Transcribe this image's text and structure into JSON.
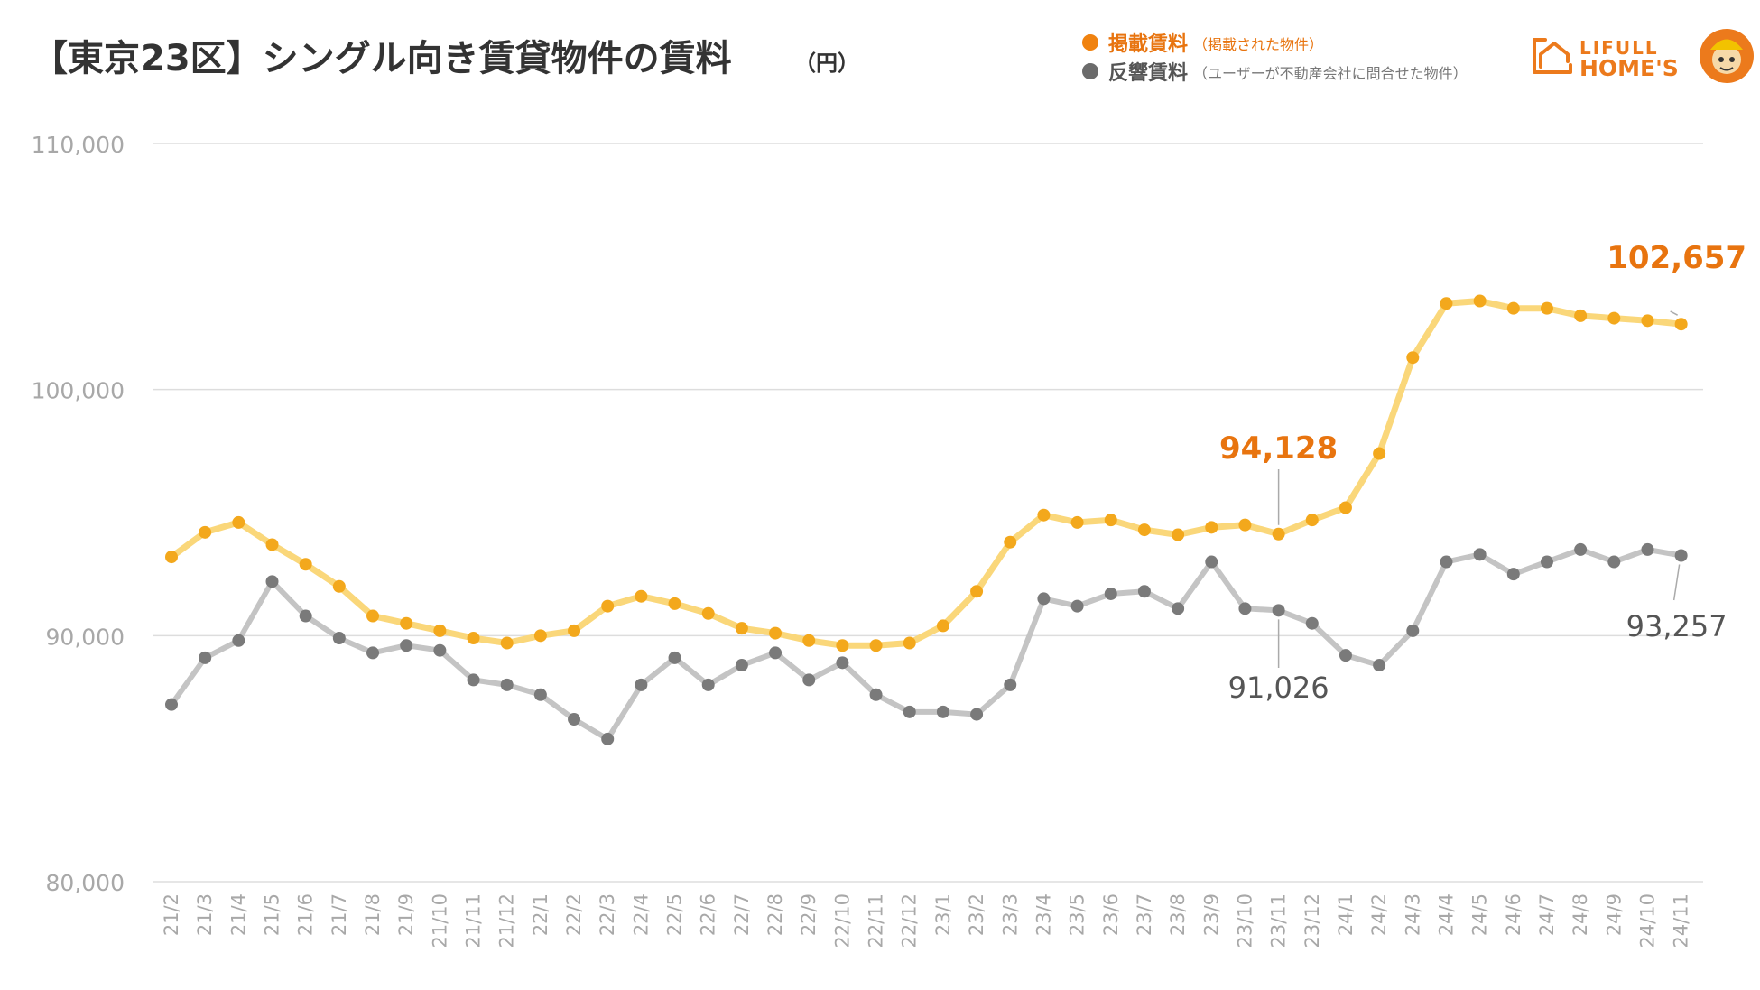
{
  "header": {
    "title": "【東京23区】シングル向き賃貸物件の賃料",
    "unit": "（円）"
  },
  "legend": [
    {
      "label": "掲載賃料",
      "note": "（掲載された物件）",
      "color": "#f0820f"
    },
    {
      "label": "反響賃料",
      "note": "（ユーザーが不動産会社に問合せた物件）",
      "color": "#6b6b6b"
    }
  ],
  "logo": {
    "line1": "LIFULL",
    "line2": "HOME'S",
    "color": "#ec7a1c"
  },
  "colors": {
    "listed_line": "#fad77a",
    "listed_dot": "#f3a81c",
    "listed_label": "#e8740f",
    "inquiry_line": "#c4c4c4",
    "inquiry_dot": "#7a7a7a",
    "inquiry_label": "#555555",
    "grid": "#dddddd",
    "tick": "#a8a8a8"
  },
  "chart_data": {
    "type": "line",
    "title": "【東京23区】シングル向き賃貸物件の賃料（円）",
    "xlabel": "",
    "ylabel": "",
    "ylim": [
      80000,
      110000
    ],
    "yticks": [
      80000,
      90000,
      100000,
      110000
    ],
    "ytick_labels": [
      "80,000",
      "90,000",
      "100,000",
      "110,000"
    ],
    "grid": true,
    "legend_position": "top-right",
    "categories": [
      "21/2",
      "21/3",
      "21/4",
      "21/5",
      "21/6",
      "21/7",
      "21/8",
      "21/9",
      "21/10",
      "21/11",
      "21/12",
      "22/1",
      "22/2",
      "22/3",
      "22/4",
      "22/5",
      "22/6",
      "22/7",
      "22/8",
      "22/9",
      "22/10",
      "22/11",
      "22/12",
      "23/1",
      "23/2",
      "23/3",
      "23/4",
      "23/5",
      "23/6",
      "23/7",
      "23/8",
      "23/9",
      "23/10",
      "23/11",
      "23/12",
      "24/1",
      "24/2",
      "24/3",
      "24/4",
      "24/5",
      "24/6",
      "24/7",
      "24/8",
      "24/9",
      "24/10",
      "24/11"
    ],
    "series": [
      {
        "name": "掲載賃料",
        "values": [
          93200,
          94200,
          94600,
          93700,
          92900,
          92000,
          90800,
          90500,
          90200,
          89900,
          89700,
          90000,
          90200,
          91200,
          91600,
          91300,
          90900,
          90300,
          90100,
          89800,
          89600,
          89600,
          89700,
          90400,
          91800,
          93800,
          94900,
          94600,
          94700,
          94300,
          94100,
          94400,
          94500,
          94128,
          94700,
          95200,
          97400,
          101300,
          103500,
          103600,
          103300,
          103300,
          103000,
          102900,
          102800,
          102657
        ],
        "annotations": [
          {
            "index": 33,
            "text": "94,128"
          },
          {
            "index": 45,
            "text": "102,657"
          }
        ]
      },
      {
        "name": "反響賃料",
        "values": [
          87200,
          89100,
          89800,
          92200,
          90800,
          89900,
          89300,
          89600,
          89400,
          88200,
          88000,
          87600,
          86600,
          85800,
          88000,
          89100,
          88000,
          88800,
          89300,
          88200,
          88900,
          87600,
          86900,
          86900,
          86800,
          88000,
          91500,
          91200,
          91700,
          91800,
          91100,
          93000,
          91100,
          91026,
          90500,
          89200,
          88800,
          90200,
          93000,
          93300,
          92500,
          93000,
          93500,
          93000,
          93500,
          93257
        ],
        "annotations": [
          {
            "index": 33,
            "text": "91,026"
          },
          {
            "index": 45,
            "text": "93,257"
          }
        ]
      }
    ]
  }
}
